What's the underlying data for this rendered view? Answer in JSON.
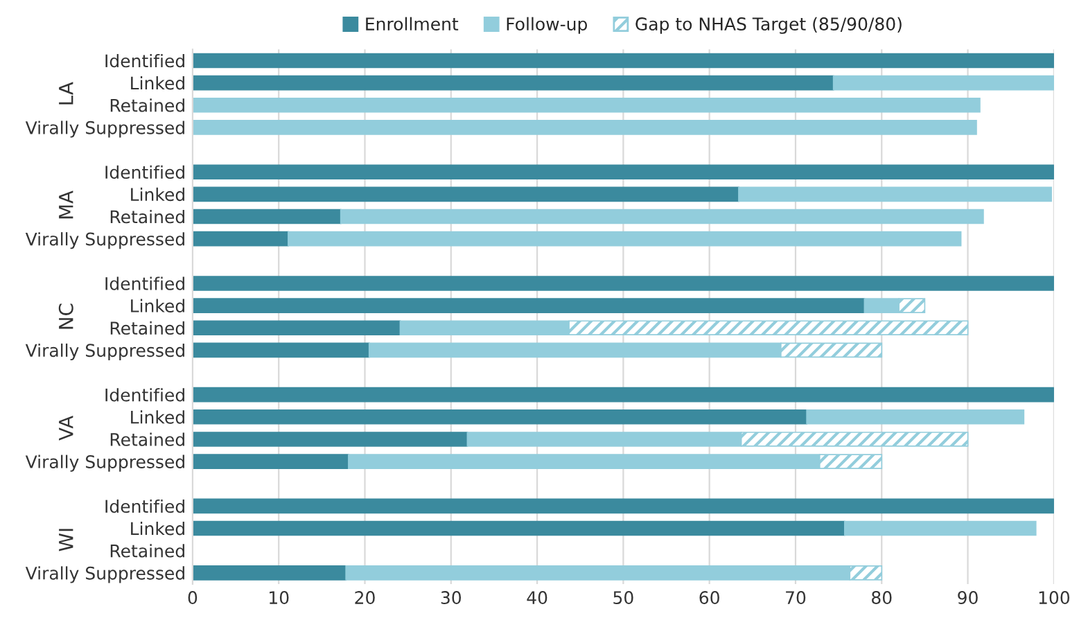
{
  "chart_data": {
    "type": "bar",
    "orientation": "horizontal",
    "stacked": true,
    "categories": [
      "Identified",
      "Linked",
      "Retained",
      "Virally Suppressed",
      null,
      "Identified",
      "Linked",
      "Retained",
      "Virally Suppressed",
      null,
      "Identified",
      "Linked",
      "Retained",
      "Virally Suppressed",
      null,
      "Identified",
      "Linked",
      "Retained",
      "Virally Suppressed",
      null,
      "Identified",
      "Linked",
      "Retained",
      "Virally Suppressed"
    ],
    "series": [
      {
        "name": "Enrollment",
        "color": "#3b8a9e",
        "values": [
          100,
          74.4,
          null,
          null,
          null,
          100,
          63.4,
          17.2,
          11.1,
          null,
          100,
          78.0,
          24.1,
          20.5,
          null,
          100,
          71.3,
          31.9,
          18.1,
          null,
          100,
          75.7,
          null,
          17.8
        ]
      },
      {
        "name": "Follow-up",
        "color": "#92cddc",
        "values": [
          null,
          25.6,
          91.4,
          91.0,
          null,
          null,
          36.3,
          74.6,
          78.1,
          null,
          null,
          4.0,
          19.6,
          47.8,
          null,
          null,
          25.2,
          31.8,
          54.7,
          null,
          null,
          22.2,
          null,
          58.5
        ]
      },
      {
        "name": "Gap to NHAS Target (85/90/80)",
        "color": "#92cddc",
        "values": [
          null,
          null,
          null,
          null,
          null,
          null,
          null,
          null,
          null,
          null,
          null,
          3.0,
          46.3,
          11.7,
          null,
          null,
          null,
          26.3,
          7.2,
          null,
          null,
          null,
          null,
          3.7
        ]
      }
    ],
    "annotations": [
      "LA",
      "MA",
      "NC",
      "VA",
      "WI"
    ],
    "xlim": [
      0,
      100
    ],
    "xticks": [
      0,
      10,
      20,
      30,
      40,
      50,
      60,
      70,
      80,
      90,
      100
    ],
    "grid": "x",
    "legend": "top"
  }
}
